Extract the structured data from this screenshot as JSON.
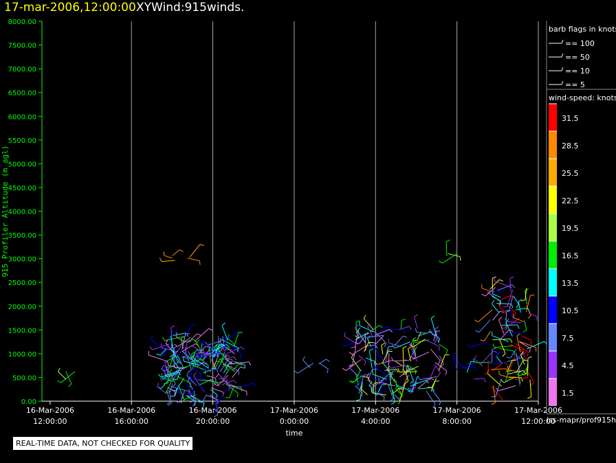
{
  "header": {
    "date_label": "17-mar-2006,12:00:00",
    "product_label": "XYWind:915winds."
  },
  "disclaimer": "REAL-TIME DATA, NOT CHECKED FOR QUALITY",
  "source": "iss-mapr/prof915h",
  "colors": {
    "axis_y": "#00ff00",
    "axis_x": "#ffffff",
    "gridline": "#aaaaaa",
    "title_date": "#ffff00"
  },
  "chart_data": {
    "type": "scatter",
    "ylabel": "915 Profiler Altitude (m agl)",
    "xlabel": "time",
    "ylim": [
      0,
      8000
    ],
    "yticks": [
      "0.00",
      "500.00",
      "1000.00",
      "1500.00",
      "2000.00",
      "2500.00",
      "3000.00",
      "3500.00",
      "4000.00",
      "4500.00",
      "5000.00",
      "5500.00",
      "6000.00",
      "6500.00",
      "7000.00",
      "7500.00",
      "8000.00"
    ],
    "xlim_hours": [
      -0.4,
      24.0
    ],
    "xticks": [
      {
        "hour": 0,
        "date": "16-Mar-2006",
        "time": "12:00:00"
      },
      {
        "hour": 4,
        "date": "16-Mar-2006",
        "time": "16:00:00"
      },
      {
        "hour": 8,
        "date": "16-Mar-2006",
        "time": "20:00:00"
      },
      {
        "hour": 12,
        "date": "17-Mar-2006",
        "time": "0:00:00"
      },
      {
        "hour": 16,
        "date": "17-Mar-2006",
        "time": "4:00:00"
      },
      {
        "hour": 20,
        "date": "17-Mar-2006",
        "time": "8:00:00"
      },
      {
        "hour": 24,
        "date": "17-Mar-2006",
        "time": "12:00:00"
      }
    ],
    "grid_x": true,
    "barb_legend": {
      "title": "barb flags in knots",
      "items": [
        "== 100",
        "== 50",
        "== 10",
        "== 5"
      ]
    },
    "speed_legend": {
      "title": "wind-speed: knots",
      "bins": [
        {
          "label": "31.5",
          "color": "#ff0000"
        },
        {
          "label": "28.5",
          "color": "#ff8800"
        },
        {
          "label": "25.5",
          "color": "#ffaa00"
        },
        {
          "label": "22.5",
          "color": "#ffff00"
        },
        {
          "label": "19.5",
          "color": "#aaff44"
        },
        {
          "label": "16.5",
          "color": "#00ee00"
        },
        {
          "label": "13.5",
          "color": "#00ffff"
        },
        {
          "label": "10.5",
          "color": "#0000ff"
        },
        {
          "label": "7.5",
          "color": "#6688ff"
        },
        {
          "label": "4.5",
          "color": "#9933ff"
        },
        {
          "label": "1.5",
          "color": "#ee77ee"
        }
      ]
    },
    "series": [
      {
        "x_range": [
          0.7,
          1.3
        ],
        "y_range": [
          350,
          650
        ],
        "count": 3,
        "colors": [
          "#00ee00",
          "#aaff44"
        ]
      },
      {
        "x_range": [
          5.6,
          9.2
        ],
        "y_range": [
          80,
          1400
        ],
        "count": 170,
        "colors": [
          "#00ffff",
          "#0000ff",
          "#6688ff",
          "#9933ff",
          "#ee77ee",
          "#00ee00"
        ]
      },
      {
        "x_range": [
          6.0,
          6.9
        ],
        "y_range": [
          2950,
          3100
        ],
        "count": 5,
        "colors": [
          "#ff8800",
          "#ffaa00"
        ]
      },
      {
        "x_range": [
          12.6,
          13.4
        ],
        "y_range": [
          680,
          820
        ],
        "count": 4,
        "colors": [
          "#9933ff",
          "#6688ff"
        ]
      },
      {
        "x_range": [
          15.0,
          19.2
        ],
        "y_range": [
          100,
          1550
        ],
        "count": 130,
        "colors": [
          "#6688ff",
          "#0000ff",
          "#9933ff",
          "#00ee00",
          "#00ffff",
          "#ffff00",
          "#aaff44",
          "#ee77ee"
        ]
      },
      {
        "x_range": [
          19.4,
          20.2
        ],
        "y_range": [
          3050,
          3120
        ],
        "count": 3,
        "colors": [
          "#00ee00",
          "#aaff44"
        ]
      },
      {
        "x_range": [
          20.0,
          21.3
        ],
        "y_range": [
          400,
          850
        ],
        "count": 8,
        "colors": [
          "#0000ff",
          "#9933ff",
          "#00ffff"
        ]
      },
      {
        "x_range": [
          21.5,
          23.6
        ],
        "y_range": [
          300,
          2400
        ],
        "count": 90,
        "colors": [
          "#ee77ee",
          "#9933ff",
          "#6688ff",
          "#0000ff",
          "#ff0000",
          "#ff8800",
          "#00ee00",
          "#00ffff",
          "#ffff00",
          "#aaff44"
        ]
      }
    ]
  }
}
